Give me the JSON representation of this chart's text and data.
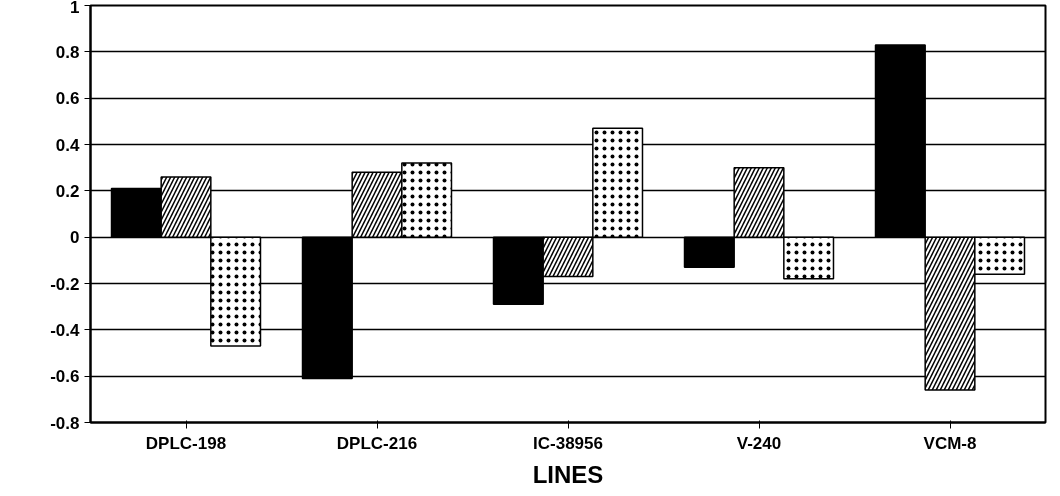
{
  "chart_data": {
    "type": "bar",
    "xlabel": "LINES",
    "categories": [
      "DPLC-198",
      "DPLC-216",
      "IC-38956",
      "V-240",
      "VCM-8"
    ],
    "series": [
      {
        "color": "#000000",
        "values": [
          0.21,
          -0.61,
          -0.29,
          -0.13,
          0.83
        ]
      },
      {
        "color": "#000000",
        "values": [
          0.26,
          0.28,
          -0.17,
          0.3,
          -0.66
        ]
      },
      {
        "color": "#000000",
        "values": [
          -0.47,
          0.32,
          0.47,
          -0.18,
          -0.16
        ]
      }
    ],
    "ylim": [
      -0.8,
      1
    ],
    "yticks": [
      -0.8,
      -0.6,
      -0.4,
      -0.2,
      0,
      0.2,
      0.4,
      0.6,
      0.8,
      1
    ],
    "grid": "y"
  }
}
